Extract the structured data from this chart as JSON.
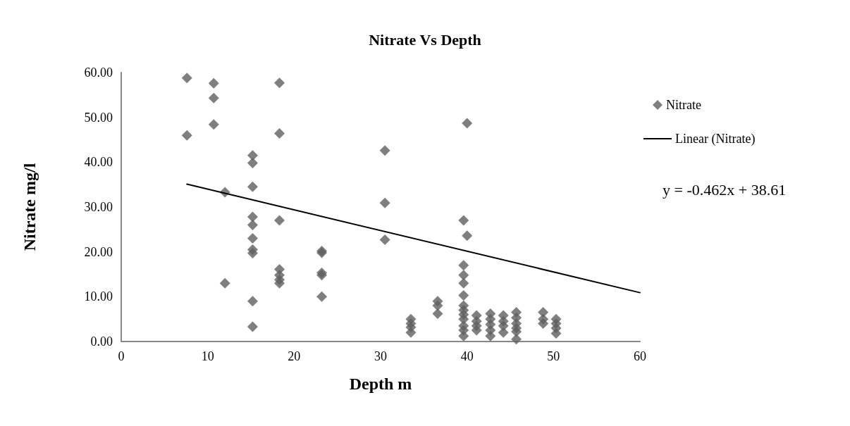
{
  "chart_data": {
    "type": "scatter",
    "title": "Nitrate Vs Depth",
    "xlabel": "Depth m",
    "ylabel": "Nitrate mg/l",
    "xlim": [
      0,
      60
    ],
    "xticks": [
      0,
      10,
      20,
      30,
      40,
      50,
      60
    ],
    "ylim": [
      0,
      60
    ],
    "yticks": [
      {
        "value": 0,
        "label": "0.00"
      },
      {
        "value": 10,
        "label": "10.00"
      },
      {
        "value": 20,
        "label": "20.00"
      },
      {
        "value": 30,
        "label": "30.00"
      },
      {
        "value": 40,
        "label": "40.00"
      },
      {
        "value": 50,
        "label": "50.00"
      },
      {
        "value": 60,
        "label": "60.00"
      }
    ],
    "grid": false,
    "legend": "right",
    "marker": "diamond",
    "annotations": [
      "y = -0.462x + 38.61"
    ],
    "series": [
      {
        "name": "Nitrate",
        "color": "#5f5f5f",
        "x": [
          7.6,
          7.6,
          10.7,
          10.7,
          10.7,
          12,
          12,
          15.2,
          15.2,
          15.2,
          15.2,
          15.2,
          15.2,
          15.2,
          15.2,
          15.2,
          15.2,
          18.3,
          18.3,
          18.3,
          18.3,
          18.3,
          18.3,
          18.3,
          23.2,
          23.2,
          23.2,
          23.2,
          23.2,
          30.5,
          30.5,
          30.5,
          33.5,
          33.5,
          33.5,
          33.5,
          36.6,
          36.6,
          36.6,
          39.6,
          39.6,
          39.6,
          39.6,
          39.6,
          39.6,
          39.6,
          39.6,
          39.6,
          39.6,
          39.6,
          39.6,
          40,
          40,
          41.1,
          41.1,
          41.1,
          41.1,
          42.7,
          42.7,
          42.7,
          42.7,
          42.7,
          44.2,
          44.2,
          44.2,
          44.2,
          45.7,
          45.7,
          45.7,
          45.7,
          45.7,
          45.7,
          48.8,
          48.8,
          48.8,
          50.3,
          50.3,
          50.3,
          50.3
        ],
        "values": [
          58.8,
          46.0,
          57.6,
          54.3,
          48.4,
          33.3,
          13.0,
          41.5,
          39.8,
          34.5,
          27.8,
          26.0,
          23.0,
          20.5,
          19.7,
          9.0,
          3.3,
          57.7,
          46.4,
          27.0,
          16.1,
          14.8,
          13.8,
          13.0,
          20.2,
          19.8,
          15.3,
          14.8,
          10.0,
          42.6,
          30.9,
          22.7,
          5.0,
          4.0,
          3.2,
          2.0,
          9.0,
          8.0,
          6.2,
          27.0,
          17.0,
          14.8,
          13.0,
          10.3,
          8.0,
          7.0,
          6.0,
          5.0,
          3.5,
          2.5,
          1.2,
          48.7,
          23.6,
          5.8,
          4.5,
          3.5,
          2.5,
          6.2,
          5.0,
          3.8,
          2.5,
          1.2,
          5.8,
          4.5,
          3.5,
          2.0,
          6.5,
          5.3,
          4.0,
          3.0,
          2.2,
          0.5,
          6.5,
          5.0,
          4.0,
          5.0,
          4.0,
          3.0,
          1.8
        ]
      },
      {
        "name": "Linear (Nitrate)",
        "type": "line",
        "color": "#000000",
        "marker": "none",
        "line_style": "solid",
        "x": [
          7.6,
          60
        ],
        "values": [
          35.1,
          10.9
        ]
      }
    ]
  }
}
